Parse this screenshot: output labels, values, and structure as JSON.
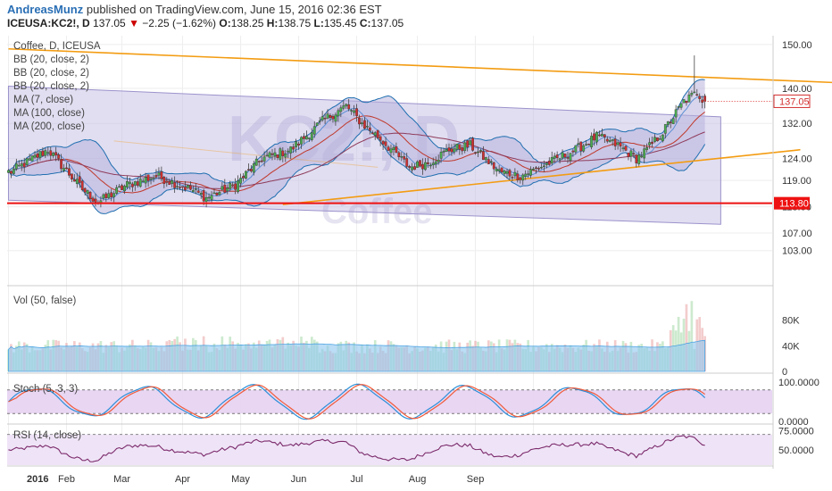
{
  "header": {
    "author": "AndreasMunz",
    "published": "published on TradingView.com, June 15, 2016 02:36 EST",
    "symbol": "ICEUSA:KC2!, D",
    "last": "137.05",
    "change": "−2.25 (−1.62%)",
    "ohlc": [
      {
        "label": "O:",
        "value": "138.25"
      },
      {
        "label": "H:",
        "value": "138.75"
      },
      {
        "label": "L:",
        "value": "135.45"
      },
      {
        "label": "C:",
        "value": "137.05"
      }
    ]
  },
  "colors": {
    "bb_fill": "#b8b3dc",
    "channel_fill": "#c8c3e6",
    "orange": "#f39c12",
    "support": "#ee1111",
    "candle_up": "#4caf50",
    "candle_down": "#d32f2f",
    "vol_up": "#a4d8a8",
    "vol_down": "#e9a3a3",
    "vol_ma": "#8ec6ee",
    "stoch_k": "#2c8fd8",
    "stoch_d": "#f05a3a",
    "rsi": "#7b2a6b",
    "osc_bg": "#e6d1f2"
  },
  "chart_data": [
    {
      "type": "candlestick",
      "title": "Coffee, D, ICEUSA",
      "legend": [
        "Coffee, D, ICEUSA",
        "BB (20, close, 2)",
        "BB (20, close, 2)",
        "BB (20, close, 2)",
        "MA (7, close)",
        "MA (100, close)",
        "MA (200, close)"
      ],
      "watermark": [
        "KC2!, D",
        "Coffee"
      ],
      "x_ticks": [
        "2016",
        "Feb",
        "Mar",
        "Apr",
        "May",
        "Jun",
        "Jul",
        "Aug",
        "Sep"
      ],
      "y_ticks": [
        "150.00",
        "140.00",
        "132.00",
        "124.00",
        "119.00",
        "113.00",
        "107.00",
        "103.00"
      ],
      "price_labels": [
        {
          "value": 137.05,
          "text": "137.05"
        },
        {
          "value": 113.8,
          "text": "113.80"
        }
      ],
      "close_anchors": [
        [
          1,
          121
        ],
        [
          15,
          126
        ],
        [
          28,
          117
        ],
        [
          34,
          114
        ],
        [
          45,
          118
        ],
        [
          56,
          120
        ],
        [
          69,
          117
        ],
        [
          75,
          115
        ],
        [
          86,
          118
        ],
        [
          96,
          124
        ],
        [
          107,
          126
        ],
        [
          120,
          133
        ],
        [
          128,
          136
        ],
        [
          134,
          132
        ],
        [
          140,
          129
        ],
        [
          152,
          122
        ],
        [
          159,
          123
        ],
        [
          167,
          126
        ],
        [
          175,
          127
        ],
        [
          186,
          121
        ],
        [
          194,
          120
        ],
        [
          205,
          123
        ],
        [
          215,
          126
        ],
        [
          223,
          129
        ],
        [
          231,
          127
        ],
        [
          238,
          124
        ],
        [
          242,
          126
        ],
        [
          248,
          130
        ],
        [
          256,
          137
        ],
        [
          261,
          139
        ],
        [
          264,
          137.05
        ]
      ],
      "channel_upper": [
        [
          0,
          140.5
        ],
        [
          270,
          133.5
        ]
      ],
      "channel_lower": [
        [
          0,
          114.5
        ],
        [
          270,
          109
        ]
      ],
      "resistance_line": [
        [
          0,
          149
        ],
        [
          360,
          140
        ]
      ],
      "support_trendline": [
        [
          104,
          113.5
        ],
        [
          290,
          126
        ]
      ],
      "support_level": 113.8,
      "date_range": [
        "2015-12-30",
        "2016-09-05"
      ]
    },
    {
      "type": "bar",
      "title": "Vol (50, false)",
      "y_ticks": [
        "80K",
        "40K",
        "0"
      ],
      "ylim": [
        0,
        120000
      ]
    },
    {
      "type": "line",
      "title": "Stoch (5, 3, 3)",
      "y_ticks": [
        "100.0000",
        "0.0000"
      ],
      "bands": [
        80,
        20
      ],
      "ylim": [
        0,
        100
      ]
    },
    {
      "type": "line",
      "title": "RSI (14, close)",
      "y_ticks": [
        "75.0000",
        "50.0000"
      ],
      "bands": [
        70,
        30
      ],
      "ylim": [
        30,
        80
      ]
    }
  ]
}
